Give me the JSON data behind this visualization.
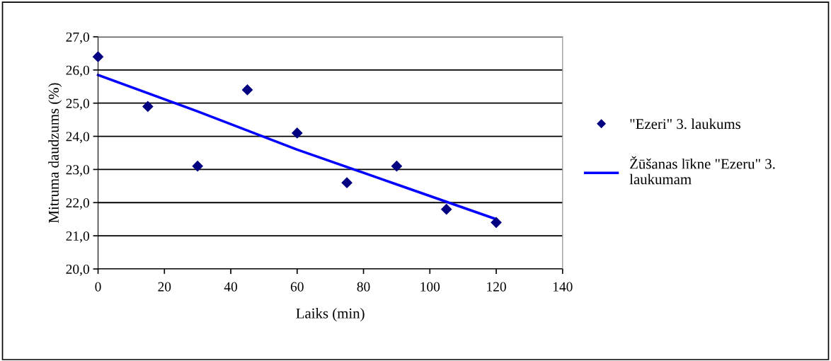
{
  "chart_data": {
    "type": "scatter",
    "xlabel": "Laiks (min)",
    "ylabel": "Mitruma daudzums (%)",
    "x": [
      0,
      15,
      30,
      45,
      60,
      75,
      90,
      105,
      120
    ],
    "series": [
      {
        "name": "\"Ezeri\" 3. laukums",
        "color": "#000080",
        "marker": "diamond",
        "values": [
          26.4,
          24.9,
          23.1,
          25.4,
          24.1,
          22.6,
          23.1,
          21.8,
          21.4
        ]
      },
      {
        "name": "Žūšanas līkne \"Ezeru\" 3. laukumam",
        "color": "#0000ff",
        "type": "line",
        "marker": "none",
        "x": [
          0,
          30,
          60,
          90,
          120
        ],
        "values": [
          25.85,
          24.75,
          23.6,
          22.55,
          21.5
        ]
      }
    ],
    "xlim": [
      0,
      140
    ],
    "xticks": [
      0,
      20,
      40,
      60,
      80,
      100,
      120,
      140
    ],
    "ylim": [
      20,
      27
    ],
    "yticks": [
      {
        "value": 20,
        "label": "20,0"
      },
      {
        "value": 21,
        "label": "21,0"
      },
      {
        "value": 22,
        "label": "22,0"
      },
      {
        "value": 23,
        "label": "23,0"
      },
      {
        "value": 24,
        "label": "24,0"
      },
      {
        "value": 25,
        "label": "25,0"
      },
      {
        "value": 26,
        "label": "26,0"
      },
      {
        "value": 27,
        "label": "27,0"
      }
    ],
    "grid": "y",
    "legend": "right"
  }
}
